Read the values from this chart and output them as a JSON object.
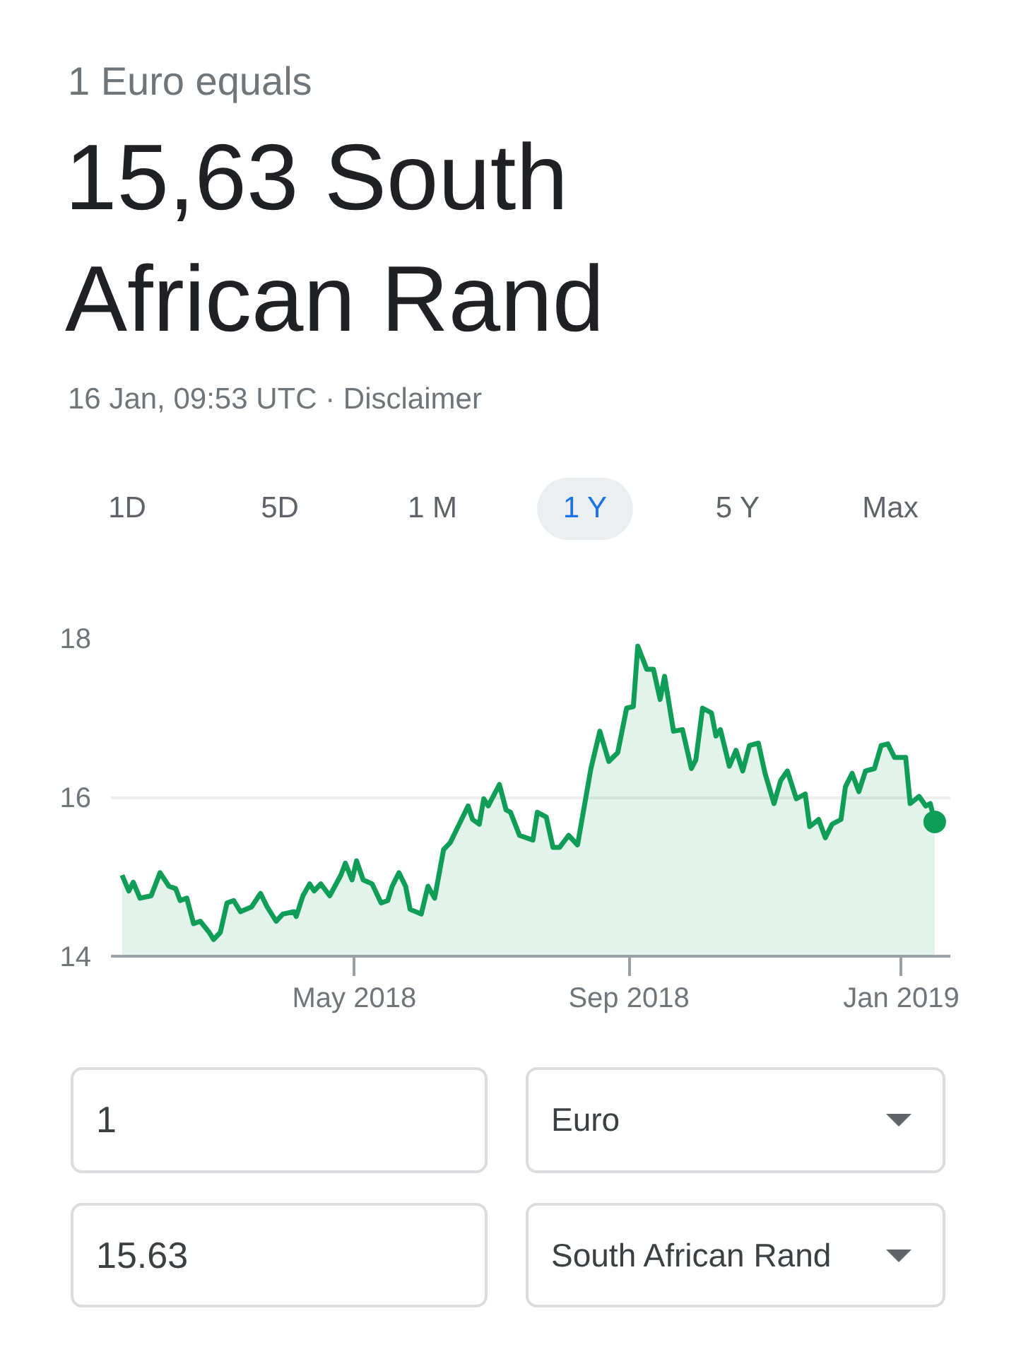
{
  "chart_data": {
    "type": "area",
    "title": "1 Euro equals",
    "subtitle": "15,63 South African Rand",
    "annotations": [
      "16 Jan, 09:53 UTC · Disclaimer",
      "1D",
      "5D",
      "1 M",
      "1 Y",
      "5 Y",
      "Max",
      "1",
      "Euro",
      "15.63",
      "South African Rand"
    ],
    "xlim": [
      "2018-01-12",
      "2019-01-23"
    ],
    "xticks": [
      {
        "value": "2018-05-01",
        "label": "May 2018"
      },
      {
        "value": "2018-09-01",
        "label": "Sep 2018"
      },
      {
        "value": "2019-01-01",
        "label": "Jan 2019"
      }
    ],
    "ylim": [
      14,
      18
    ],
    "yticks": [
      14,
      16,
      18
    ],
    "grid": "y",
    "series": [
      {
        "color": "#0f9d58",
        "x": [
          "2018-01-17",
          "2018-01-20",
          "2018-01-22",
          "2018-01-25",
          "2018-01-30",
          "2018-02-03",
          "2018-02-07",
          "2018-02-10",
          "2018-02-12",
          "2018-02-15",
          "2018-02-18",
          "2018-02-21",
          "2018-02-25",
          "2018-02-27",
          "2018-03-02",
          "2018-03-05",
          "2018-03-08",
          "2018-03-11",
          "2018-03-16",
          "2018-03-20",
          "2018-03-23",
          "2018-03-27",
          "2018-03-30",
          "2018-04-04",
          "2018-04-05",
          "2018-04-08",
          "2018-04-11",
          "2018-04-13",
          "2018-04-16",
          "2018-04-20",
          "2018-04-25",
          "2018-04-27",
          "2018-04-30",
          "2018-05-02",
          "2018-05-05",
          "2018-05-09",
          "2018-05-13",
          "2018-05-16",
          "2018-05-18",
          "2018-05-21",
          "2018-05-24",
          "2018-05-26",
          "2018-05-31",
          "2018-06-03",
          "2018-06-06",
          "2018-06-10",
          "2018-06-13",
          "2018-06-17",
          "2018-06-21",
          "2018-06-23",
          "2018-06-26",
          "2018-06-28",
          "2018-06-30",
          "2018-07-05",
          "2018-07-08",
          "2018-07-10",
          "2018-07-14",
          "2018-07-20",
          "2018-07-22",
          "2018-07-26",
          "2018-07-29",
          "2018-08-01",
          "2018-08-05",
          "2018-08-09",
          "2018-08-13",
          "2018-08-15",
          "2018-08-19",
          "2018-08-23",
          "2018-08-27",
          "2018-08-31",
          "2018-09-03",
          "2018-09-05",
          "2018-09-09",
          "2018-09-12",
          "2018-09-15",
          "2018-09-17",
          "2018-09-21",
          "2018-09-25",
          "2018-09-29",
          "2018-10-01",
          "2018-10-04",
          "2018-10-08",
          "2018-10-10",
          "2018-10-12",
          "2018-10-16",
          "2018-10-19",
          "2018-10-22",
          "2018-10-25",
          "2018-10-29",
          "2018-11-01",
          "2018-11-05",
          "2018-11-08",
          "2018-11-11",
          "2018-11-15",
          "2018-11-19",
          "2018-11-21",
          "2018-11-25",
          "2018-11-28",
          "2018-12-01",
          "2018-12-05",
          "2018-12-07",
          "2018-12-10",
          "2018-12-13",
          "2018-12-16",
          "2018-12-20",
          "2018-12-23",
          "2018-12-26",
          "2018-12-29",
          "2019-01-03",
          "2019-01-05",
          "2019-01-09",
          "2019-01-12",
          "2019-01-14",
          "2019-01-16"
        ],
        "values": [
          15.02,
          14.82,
          14.93,
          14.73,
          14.76,
          15.05,
          14.88,
          14.85,
          14.7,
          14.73,
          14.41,
          14.44,
          14.3,
          14.21,
          14.3,
          14.67,
          14.7,
          14.56,
          14.62,
          14.79,
          14.62,
          14.44,
          14.53,
          14.56,
          14.5,
          14.76,
          14.91,
          14.82,
          14.91,
          14.76,
          15.02,
          15.17,
          14.96,
          15.2,
          14.96,
          14.91,
          14.67,
          14.7,
          14.88,
          15.05,
          14.88,
          14.59,
          14.53,
          14.88,
          14.73,
          15.34,
          15.43,
          15.66,
          15.89,
          15.72,
          15.66,
          15.98,
          15.89,
          16.16,
          15.84,
          15.81,
          15.52,
          15.46,
          15.81,
          15.75,
          15.37,
          15.37,
          15.52,
          15.4,
          16.04,
          16.36,
          16.83,
          16.45,
          16.56,
          17.12,
          17.14,
          17.9,
          17.61,
          17.61,
          17.23,
          17.52,
          16.83,
          16.85,
          16.36,
          16.47,
          17.12,
          17.06,
          16.77,
          16.85,
          16.39,
          16.59,
          16.33,
          16.65,
          16.68,
          16.3,
          15.92,
          16.21,
          16.33,
          15.98,
          16.04,
          15.63,
          15.72,
          15.49,
          15.66,
          15.72,
          16.13,
          16.3,
          16.07,
          16.33,
          16.36,
          16.65,
          16.67,
          16.5,
          16.5,
          15.92,
          16.01,
          15.89,
          15.92,
          15.69
        ]
      },
      {
        "type": "scatter",
        "color": "#0f9d58",
        "x": [
          "2019-01-16"
        ],
        "values": [
          15.69
        ]
      }
    ]
  }
}
